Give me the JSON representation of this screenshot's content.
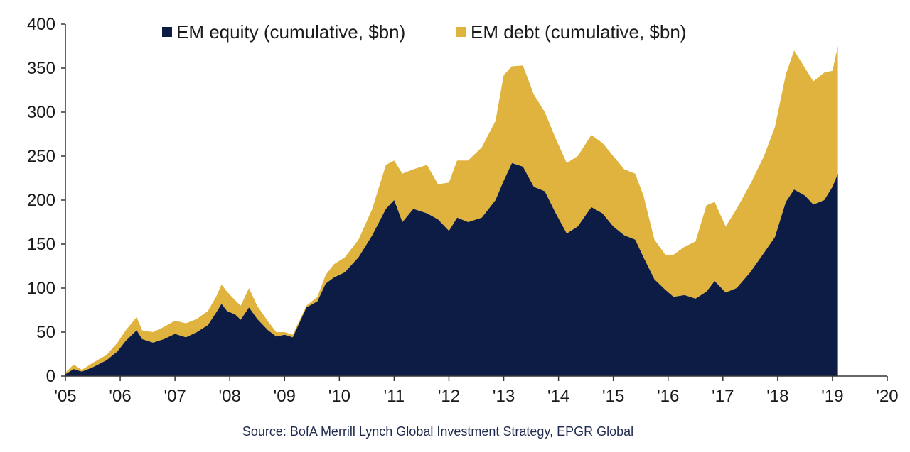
{
  "chart_data": {
    "type": "area",
    "stacked": true,
    "x_ticks": [
      "'05",
      "'06",
      "'07",
      "'08",
      "'09",
      "'10",
      "'11",
      "'12",
      "'13",
      "'14",
      "'15",
      "'16",
      "'17",
      "'18",
      "'19",
      "'20"
    ],
    "y_ticks": [
      "0",
      "50",
      "100",
      "150",
      "200",
      "250",
      "300",
      "350",
      "400"
    ],
    "xlim": [
      2005,
      2020
    ],
    "ylim": [
      0,
      400
    ],
    "grid": false,
    "legend_position": "top",
    "source": "Source: BofA Merrill Lynch Global Investment Strategy, EPGR Global",
    "series": [
      {
        "name": "EM equity (cumulative, $bn)",
        "color": "#0d1c45",
        "points": [
          [
            2005.0,
            2
          ],
          [
            2005.15,
            8
          ],
          [
            2005.3,
            5
          ],
          [
            2005.5,
            10
          ],
          [
            2005.75,
            18
          ],
          [
            2005.95,
            28
          ],
          [
            2006.1,
            40
          ],
          [
            2006.3,
            52
          ],
          [
            2006.4,
            42
          ],
          [
            2006.6,
            38
          ],
          [
            2006.8,
            42
          ],
          [
            2007.0,
            48
          ],
          [
            2007.2,
            44
          ],
          [
            2007.4,
            50
          ],
          [
            2007.6,
            58
          ],
          [
            2007.75,
            72
          ],
          [
            2007.85,
            82
          ],
          [
            2007.95,
            74
          ],
          [
            2008.1,
            70
          ],
          [
            2008.2,
            64
          ],
          [
            2008.35,
            78
          ],
          [
            2008.5,
            65
          ],
          [
            2008.7,
            52
          ],
          [
            2008.85,
            45
          ],
          [
            2009.0,
            47
          ],
          [
            2009.15,
            44
          ],
          [
            2009.4,
            78
          ],
          [
            2009.6,
            85
          ],
          [
            2009.75,
            105
          ],
          [
            2009.9,
            112
          ],
          [
            2010.1,
            118
          ],
          [
            2010.35,
            135
          ],
          [
            2010.6,
            160
          ],
          [
            2010.85,
            190
          ],
          [
            2011.0,
            200
          ],
          [
            2011.15,
            175
          ],
          [
            2011.35,
            190
          ],
          [
            2011.6,
            185
          ],
          [
            2011.8,
            178
          ],
          [
            2012.0,
            165
          ],
          [
            2012.15,
            180
          ],
          [
            2012.35,
            175
          ],
          [
            2012.6,
            180
          ],
          [
            2012.85,
            200
          ],
          [
            2013.0,
            222
          ],
          [
            2013.15,
            242
          ],
          [
            2013.35,
            238
          ],
          [
            2013.55,
            215
          ],
          [
            2013.75,
            210
          ],
          [
            2013.95,
            185
          ],
          [
            2014.15,
            162
          ],
          [
            2014.35,
            170
          ],
          [
            2014.6,
            192
          ],
          [
            2014.8,
            185
          ],
          [
            2015.0,
            170
          ],
          [
            2015.2,
            160
          ],
          [
            2015.4,
            155
          ],
          [
            2015.55,
            135
          ],
          [
            2015.75,
            110
          ],
          [
            2015.95,
            98
          ],
          [
            2016.1,
            90
          ],
          [
            2016.3,
            92
          ],
          [
            2016.5,
            88
          ],
          [
            2016.7,
            96
          ],
          [
            2016.85,
            108
          ],
          [
            2017.05,
            95
          ],
          [
            2017.25,
            100
          ],
          [
            2017.5,
            118
          ],
          [
            2017.75,
            140
          ],
          [
            2017.95,
            158
          ],
          [
            2018.15,
            198
          ],
          [
            2018.3,
            212
          ],
          [
            2018.5,
            205
          ],
          [
            2018.65,
            195
          ],
          [
            2018.85,
            200
          ],
          [
            2019.0,
            215
          ],
          [
            2019.1,
            230
          ]
        ]
      },
      {
        "name": "EM debt (cumulative, $bn)",
        "color": "#e0b33e",
        "points": [
          [
            2005.0,
            2
          ],
          [
            2005.15,
            5
          ],
          [
            2005.3,
            2
          ],
          [
            2005.5,
            5
          ],
          [
            2005.75,
            6
          ],
          [
            2005.95,
            10
          ],
          [
            2006.1,
            12
          ],
          [
            2006.3,
            15
          ],
          [
            2006.4,
            10
          ],
          [
            2006.6,
            12
          ],
          [
            2006.8,
            14
          ],
          [
            2007.0,
            15
          ],
          [
            2007.2,
            16
          ],
          [
            2007.4,
            15
          ],
          [
            2007.6,
            16
          ],
          [
            2007.75,
            18
          ],
          [
            2007.85,
            22
          ],
          [
            2007.95,
            22
          ],
          [
            2008.1,
            16
          ],
          [
            2008.2,
            16
          ],
          [
            2008.35,
            22
          ],
          [
            2008.5,
            15
          ],
          [
            2008.7,
            10
          ],
          [
            2008.85,
            5
          ],
          [
            2009.0,
            3
          ],
          [
            2009.15,
            3
          ],
          [
            2009.4,
            2
          ],
          [
            2009.6,
            5
          ],
          [
            2009.75,
            10
          ],
          [
            2009.9,
            15
          ],
          [
            2010.1,
            17
          ],
          [
            2010.35,
            20
          ],
          [
            2010.6,
            30
          ],
          [
            2010.85,
            50
          ],
          [
            2011.0,
            45
          ],
          [
            2011.15,
            55
          ],
          [
            2011.35,
            45
          ],
          [
            2011.6,
            55
          ],
          [
            2011.8,
            40
          ],
          [
            2012.0,
            55
          ],
          [
            2012.15,
            65
          ],
          [
            2012.35,
            70
          ],
          [
            2012.6,
            80
          ],
          [
            2012.85,
            90
          ],
          [
            2013.0,
            120
          ],
          [
            2013.15,
            110
          ],
          [
            2013.35,
            115
          ],
          [
            2013.55,
            105
          ],
          [
            2013.75,
            90
          ],
          [
            2013.95,
            85
          ],
          [
            2014.15,
            80
          ],
          [
            2014.35,
            80
          ],
          [
            2014.6,
            82
          ],
          [
            2014.8,
            80
          ],
          [
            2015.0,
            80
          ],
          [
            2015.2,
            75
          ],
          [
            2015.4,
            75
          ],
          [
            2015.55,
            70
          ],
          [
            2015.75,
            45
          ],
          [
            2015.95,
            40
          ],
          [
            2016.1,
            48
          ],
          [
            2016.3,
            55
          ],
          [
            2016.5,
            65
          ],
          [
            2016.7,
            98
          ],
          [
            2016.85,
            90
          ],
          [
            2017.05,
            75
          ],
          [
            2017.25,
            90
          ],
          [
            2017.5,
            100
          ],
          [
            2017.75,
            110
          ],
          [
            2017.95,
            125
          ],
          [
            2018.15,
            145
          ],
          [
            2018.3,
            158
          ],
          [
            2018.5,
            145
          ],
          [
            2018.65,
            140
          ],
          [
            2018.85,
            145
          ],
          [
            2019.0,
            132
          ],
          [
            2019.1,
            145
          ]
        ]
      }
    ]
  }
}
